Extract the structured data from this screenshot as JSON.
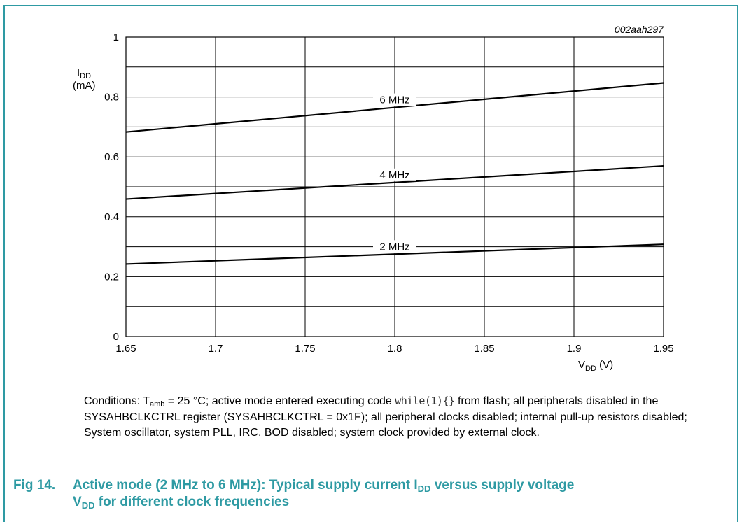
{
  "figure_id": "002aah297",
  "chart_data": {
    "type": "line",
    "xlabel_main": "V",
    "xlabel_sub": "DD",
    "xlabel_unit": " (V)",
    "ylabel_main": "I",
    "ylabel_sub": "DD",
    "ylabel_unit": "(mA)",
    "xlim": [
      1.65,
      1.95
    ],
    "ylim": [
      0,
      1
    ],
    "x_ticks": [
      "1.65",
      "1.7",
      "1.75",
      "1.8",
      "1.85",
      "1.9",
      "1.95"
    ],
    "y_ticks": [
      "0",
      "0.2",
      "0.4",
      "0.6",
      "0.8",
      "1"
    ],
    "y_grid": [
      0,
      0.1,
      0.2,
      0.3,
      0.4,
      0.5,
      0.6,
      0.7,
      0.8,
      0.9,
      1.0
    ],
    "grid": true,
    "series": [
      {
        "name": "6 MHz",
        "x": [
          1.65,
          1.95
        ],
        "y": [
          0.683,
          0.847
        ],
        "label_x": 1.8
      },
      {
        "name": "4 MHz",
        "x": [
          1.65,
          1.95
        ],
        "y": [
          0.459,
          0.57
        ],
        "label_x": 1.8
      },
      {
        "name": "2 MHz",
        "x": [
          1.65,
          1.95
        ],
        "y": [
          0.242,
          0.308
        ],
        "label_x": 1.8
      }
    ]
  },
  "conditions": {
    "prefix": "Conditions: T",
    "sub": "amb",
    "part1": " = 25 °C; active mode entered executing code ",
    "code": "while(1){}",
    "part2": " from flash; all peripherals disabled in the SYSAHBCLKCTRL register (SYSAHBCLKCTRL = 0x1F); all peripheral clocks disabled; internal pull-up resistors disabled; System oscillator, system PLL, IRC, BOD disabled; system clock provided by external clock."
  },
  "caption": {
    "number": "Fig 14.",
    "line1": "Active mode (2 MHz to 6 MHz): Typical supply current I",
    "line1_sub": "DD",
    "line1_end": " versus supply voltage",
    "line2": "V",
    "line2_sub": "DD",
    "line2_end": " for different clock frequencies"
  }
}
